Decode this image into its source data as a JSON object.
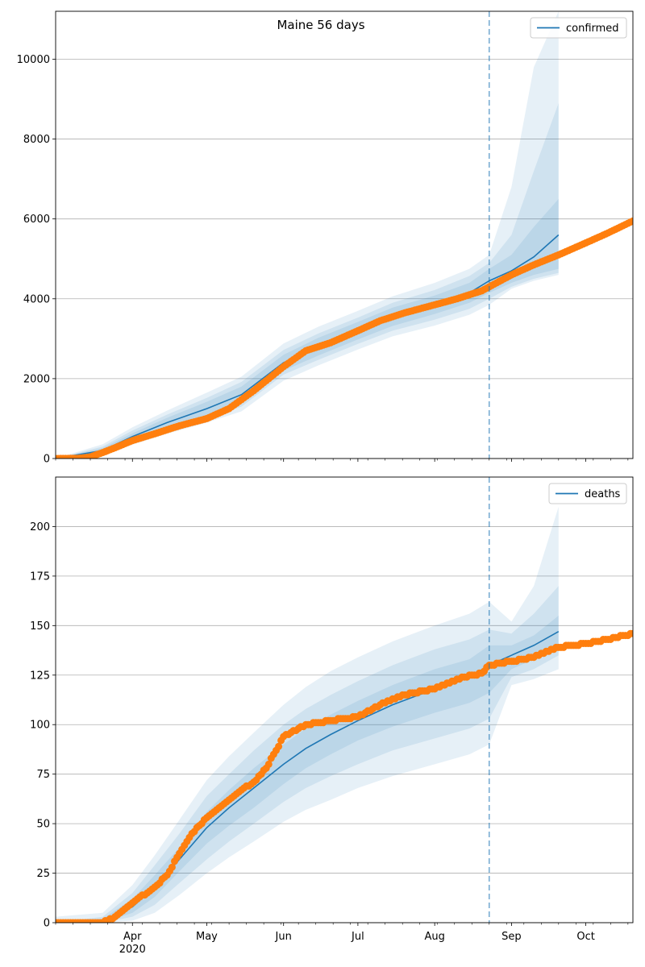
{
  "title": "Maine 56 days",
  "chart_data": [
    {
      "type": "line",
      "name": "confirmed-panel",
      "legend": "confirmed",
      "legend_position": "top-right",
      "grid": "y-major",
      "ylim": [
        0,
        11200
      ],
      "yticks": [
        0,
        2000,
        4000,
        6000,
        8000,
        10000
      ],
      "forecast_start": "2020-08-23",
      "observed": {
        "x": [
          "2020-03-01",
          "2020-03-10",
          "2020-03-15",
          "2020-03-20",
          "2020-03-25",
          "2020-04-01",
          "2020-04-10",
          "2020-04-20",
          "2020-05-01",
          "2020-05-10",
          "2020-05-20",
          "2020-06-01",
          "2020-06-10",
          "2020-06-20",
          "2020-07-01",
          "2020-07-10",
          "2020-07-20",
          "2020-08-01",
          "2020-08-10",
          "2020-08-20",
          "2020-08-23",
          "2020-09-01",
          "2020-09-10",
          "2020-09-20",
          "2020-10-01",
          "2020-10-10",
          "2020-10-20"
        ],
        "y": [
          0,
          5,
          40,
          150,
          270,
          450,
          620,
          820,
          1000,
          1250,
          1700,
          2300,
          2700,
          2900,
          3200,
          3450,
          3650,
          3850,
          4000,
          4200,
          4300,
          4600,
          4850,
          5100,
          5400,
          5650,
          5950
        ]
      },
      "model": {
        "x": [
          "2020-03-01",
          "2020-03-20",
          "2020-04-01",
          "2020-04-15",
          "2020-05-01",
          "2020-05-15",
          "2020-06-01",
          "2020-06-15",
          "2020-07-01",
          "2020-07-15",
          "2020-08-01",
          "2020-08-15",
          "2020-08-23",
          "2020-09-01",
          "2020-09-10",
          "2020-09-20"
        ],
        "y": [
          0,
          200,
          550,
          900,
          1250,
          1600,
          2400,
          2800,
          3200,
          3550,
          3850,
          4150,
          4450,
          4700,
          5050,
          5600
        ],
        "band_inner": [
          [
            0,
            0
          ],
          [
            150,
            260
          ],
          [
            480,
            630
          ],
          [
            780,
            1020
          ],
          [
            1080,
            1420
          ],
          [
            1400,
            1800
          ],
          [
            2200,
            2600
          ],
          [
            2580,
            3020
          ],
          [
            2980,
            3420
          ],
          [
            3320,
            3780
          ],
          [
            3620,
            4080
          ],
          [
            3900,
            4400
          ],
          [
            4150,
            4750
          ],
          [
            4400,
            5100
          ],
          [
            4600,
            5800
          ],
          [
            4750,
            6500
          ]
        ],
        "band_mid": [
          [
            0,
            0
          ],
          [
            110,
            300
          ],
          [
            420,
            700
          ],
          [
            700,
            1100
          ],
          [
            1000,
            1520
          ],
          [
            1300,
            1920
          ],
          [
            2100,
            2720
          ],
          [
            2470,
            3130
          ],
          [
            2870,
            3530
          ],
          [
            3200,
            3900
          ],
          [
            3480,
            4220
          ],
          [
            3750,
            4570
          ],
          [
            4000,
            4900
          ],
          [
            4300,
            5600
          ],
          [
            4500,
            7200
          ],
          [
            4650,
            8900
          ]
        ],
        "band_outer": [
          [
            0,
            0
          ],
          [
            60,
            360
          ],
          [
            350,
            780
          ],
          [
            620,
            1200
          ],
          [
            900,
            1650
          ],
          [
            1180,
            2050
          ],
          [
            1950,
            2880
          ],
          [
            2330,
            3300
          ],
          [
            2730,
            3700
          ],
          [
            3060,
            4060
          ],
          [
            3330,
            4400
          ],
          [
            3600,
            4750
          ],
          [
            3850,
            5100
          ],
          [
            4250,
            6800
          ],
          [
            4450,
            9800
          ],
          [
            4600,
            11200
          ]
        ]
      }
    },
    {
      "type": "line",
      "name": "deaths-panel",
      "legend": "deaths",
      "legend_position": "top-right",
      "grid": "y-major",
      "ylim": [
        0,
        225
      ],
      "yticks": [
        0,
        25,
        50,
        75,
        100,
        125,
        150,
        175,
        200
      ],
      "forecast_start": "2020-08-23",
      "observed": {
        "x": [
          "2020-03-01",
          "2020-03-20",
          "2020-03-25",
          "2020-04-01",
          "2020-04-10",
          "2020-04-15",
          "2020-04-20",
          "2020-04-25",
          "2020-05-01",
          "2020-05-10",
          "2020-05-15",
          "2020-05-20",
          "2020-05-25",
          "2020-06-01",
          "2020-06-10",
          "2020-06-20",
          "2020-07-01",
          "2020-07-10",
          "2020-07-20",
          "2020-08-01",
          "2020-08-10",
          "2020-08-20",
          "2020-08-23",
          "2020-09-01",
          "2020-09-10",
          "2020-09-20",
          "2020-10-01",
          "2020-10-10",
          "2020-10-20"
        ],
        "y": [
          0,
          0,
          3,
          10,
          18,
          24,
          35,
          45,
          53,
          62,
          67,
          71,
          78,
          94,
          100,
          102,
          104,
          110,
          115,
          118,
          123,
          126,
          130,
          132,
          134,
          139,
          141,
          143,
          146
        ]
      },
      "model": {
        "x": [
          "2020-03-01",
          "2020-03-20",
          "2020-04-01",
          "2020-04-10",
          "2020-04-20",
          "2020-05-01",
          "2020-05-10",
          "2020-05-20",
          "2020-06-01",
          "2020-06-10",
          "2020-06-20",
          "2020-07-01",
          "2020-07-15",
          "2020-08-01",
          "2020-08-15",
          "2020-08-23",
          "2020-09-01",
          "2020-09-10",
          "2020-09-20"
        ],
        "y": [
          0,
          1,
          8,
          18,
          32,
          48,
          58,
          68,
          80,
          88,
          95,
          102,
          110,
          118,
          124,
          130,
          135,
          140,
          147
        ],
        "band_inner": [
          [
            0,
            0
          ],
          [
            0,
            2
          ],
          [
            5,
            12
          ],
          [
            13,
            24
          ],
          [
            26,
            38
          ],
          [
            40,
            56
          ],
          [
            49,
            67
          ],
          [
            58,
            78
          ],
          [
            70,
            90
          ],
          [
            78,
            98
          ],
          [
            85,
            105
          ],
          [
            92,
            112
          ],
          [
            99,
            120
          ],
          [
            106,
            128
          ],
          [
            111,
            133
          ],
          [
            116,
            140
          ],
          [
            128,
            140
          ],
          [
            133,
            145
          ],
          [
            140,
            155
          ]
        ],
        "band_mid": [
          [
            0,
            0
          ],
          [
            0,
            3
          ],
          [
            3,
            15
          ],
          [
            9,
            29
          ],
          [
            20,
            45
          ],
          [
            32,
            64
          ],
          [
            41,
            75
          ],
          [
            50,
            87
          ],
          [
            61,
            100
          ],
          [
            68,
            108
          ],
          [
            74,
            115
          ],
          [
            80,
            122
          ],
          [
            87,
            130
          ],
          [
            93,
            138
          ],
          [
            98,
            143
          ],
          [
            103,
            148
          ],
          [
            124,
            146
          ],
          [
            128,
            156
          ],
          [
            135,
            170
          ]
        ],
        "band_outer": [
          [
            0,
            3
          ],
          [
            0,
            5
          ],
          [
            1,
            19
          ],
          [
            5,
            34
          ],
          [
            14,
            52
          ],
          [
            25,
            72
          ],
          [
            33,
            84
          ],
          [
            41,
            96
          ],
          [
            51,
            110
          ],
          [
            57,
            119
          ],
          [
            62,
            127
          ],
          [
            68,
            134
          ],
          [
            74,
            142
          ],
          [
            80,
            150
          ],
          [
            85,
            156
          ],
          [
            90,
            162
          ],
          [
            120,
            152
          ],
          [
            123,
            170
          ],
          [
            128,
            210
          ]
        ]
      }
    }
  ],
  "x_axis": {
    "range": [
      "2020-03-01",
      "2020-10-20"
    ],
    "major_ticks": [
      {
        "date": "2020-04-01",
        "label": "Apr",
        "sublabel": "2020"
      },
      {
        "date": "2020-05-01",
        "label": "May",
        "sublabel": ""
      },
      {
        "date": "2020-06-01",
        "label": "Jun",
        "sublabel": ""
      },
      {
        "date": "2020-07-01",
        "label": "Jul",
        "sublabel": ""
      },
      {
        "date": "2020-08-01",
        "label": "Aug",
        "sublabel": ""
      },
      {
        "date": "2020-09-01",
        "label": "Sep",
        "sublabel": ""
      },
      {
        "date": "2020-10-01",
        "label": "Oct",
        "sublabel": ""
      }
    ]
  },
  "colors": {
    "model_line": "#1f77b4",
    "observed": "#ff7f0e",
    "band": "#1f77b4",
    "forecast_line": "#1f77b4",
    "grid": "#b0b0b0"
  }
}
